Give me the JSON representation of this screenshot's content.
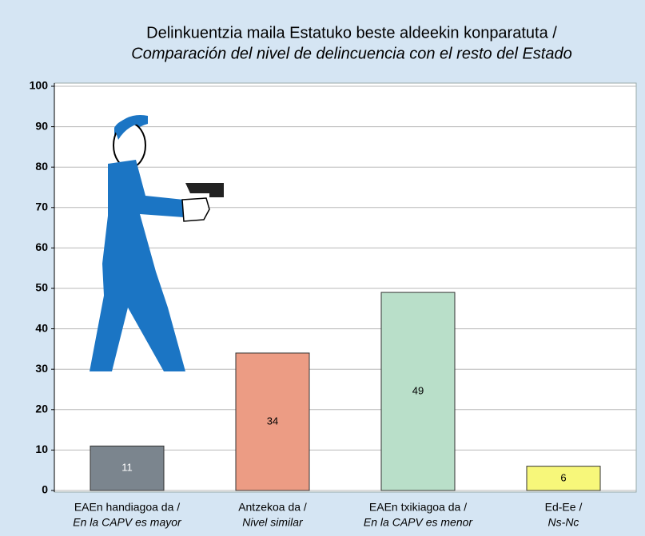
{
  "chart_data": {
    "type": "bar",
    "title": "Delinkuentzia maila Estatuko beste aldeekin konparatuta /",
    "subtitle": "Comparación del nivel de delincuencia con el resto del Estado",
    "categories": [
      "EAEn handiagoa da /",
      "Antzekoa da /",
      "EAEn txikiagoa da /",
      "Ed-Ee /"
    ],
    "categories_secondary": [
      "En la CAPV es mayor",
      "Nivel similar",
      "En la CAPV es menor",
      "Ns-Nc"
    ],
    "values": [
      11,
      34,
      49,
      6
    ],
    "colors": [
      "#7b858e",
      "#ec9c84",
      "#b9dfc9",
      "#f7f77a"
    ],
    "label_colors": [
      "#ffffff",
      "#000000",
      "#000000",
      "#000000"
    ],
    "ylim": [
      0,
      100
    ],
    "yticks": [
      0,
      10,
      20,
      30,
      40,
      50,
      60,
      70,
      80,
      90,
      100
    ],
    "grid": true
  }
}
